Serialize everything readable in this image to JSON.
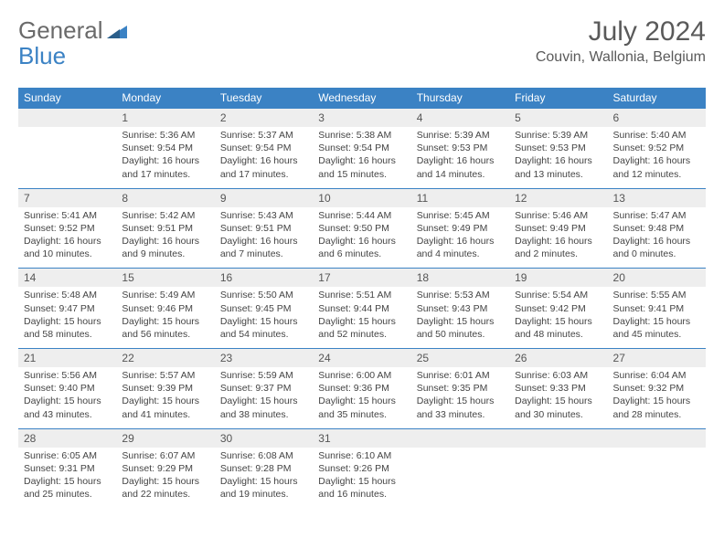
{
  "logo": {
    "part1": "General",
    "part2": "Blue"
  },
  "title": "July 2024",
  "location": "Couvin, Wallonia, Belgium",
  "colors": {
    "header_bg": "#3b82c4",
    "header_text": "#ffffff",
    "daynum_bg": "#eeeeee",
    "border": "#3b82c4",
    "text": "#444444",
    "title_text": "#5a5a5a"
  },
  "weekday_labels": [
    "Sunday",
    "Monday",
    "Tuesday",
    "Wednesday",
    "Thursday",
    "Friday",
    "Saturday"
  ],
  "first_weekday_index": 1,
  "days": [
    {
      "n": 1,
      "sunrise": "5:36 AM",
      "sunset": "9:54 PM",
      "daylight": "16 hours and 17 minutes."
    },
    {
      "n": 2,
      "sunrise": "5:37 AM",
      "sunset": "9:54 PM",
      "daylight": "16 hours and 17 minutes."
    },
    {
      "n": 3,
      "sunrise": "5:38 AM",
      "sunset": "9:54 PM",
      "daylight": "16 hours and 15 minutes."
    },
    {
      "n": 4,
      "sunrise": "5:39 AM",
      "sunset": "9:53 PM",
      "daylight": "16 hours and 14 minutes."
    },
    {
      "n": 5,
      "sunrise": "5:39 AM",
      "sunset": "9:53 PM",
      "daylight": "16 hours and 13 minutes."
    },
    {
      "n": 6,
      "sunrise": "5:40 AM",
      "sunset": "9:52 PM",
      "daylight": "16 hours and 12 minutes."
    },
    {
      "n": 7,
      "sunrise": "5:41 AM",
      "sunset": "9:52 PM",
      "daylight": "16 hours and 10 minutes."
    },
    {
      "n": 8,
      "sunrise": "5:42 AM",
      "sunset": "9:51 PM",
      "daylight": "16 hours and 9 minutes."
    },
    {
      "n": 9,
      "sunrise": "5:43 AM",
      "sunset": "9:51 PM",
      "daylight": "16 hours and 7 minutes."
    },
    {
      "n": 10,
      "sunrise": "5:44 AM",
      "sunset": "9:50 PM",
      "daylight": "16 hours and 6 minutes."
    },
    {
      "n": 11,
      "sunrise": "5:45 AM",
      "sunset": "9:49 PM",
      "daylight": "16 hours and 4 minutes."
    },
    {
      "n": 12,
      "sunrise": "5:46 AM",
      "sunset": "9:49 PM",
      "daylight": "16 hours and 2 minutes."
    },
    {
      "n": 13,
      "sunrise": "5:47 AM",
      "sunset": "9:48 PM",
      "daylight": "16 hours and 0 minutes."
    },
    {
      "n": 14,
      "sunrise": "5:48 AM",
      "sunset": "9:47 PM",
      "daylight": "15 hours and 58 minutes."
    },
    {
      "n": 15,
      "sunrise": "5:49 AM",
      "sunset": "9:46 PM",
      "daylight": "15 hours and 56 minutes."
    },
    {
      "n": 16,
      "sunrise": "5:50 AM",
      "sunset": "9:45 PM",
      "daylight": "15 hours and 54 minutes."
    },
    {
      "n": 17,
      "sunrise": "5:51 AM",
      "sunset": "9:44 PM",
      "daylight": "15 hours and 52 minutes."
    },
    {
      "n": 18,
      "sunrise": "5:53 AM",
      "sunset": "9:43 PM",
      "daylight": "15 hours and 50 minutes."
    },
    {
      "n": 19,
      "sunrise": "5:54 AM",
      "sunset": "9:42 PM",
      "daylight": "15 hours and 48 minutes."
    },
    {
      "n": 20,
      "sunrise": "5:55 AM",
      "sunset": "9:41 PM",
      "daylight": "15 hours and 45 minutes."
    },
    {
      "n": 21,
      "sunrise": "5:56 AM",
      "sunset": "9:40 PM",
      "daylight": "15 hours and 43 minutes."
    },
    {
      "n": 22,
      "sunrise": "5:57 AM",
      "sunset": "9:39 PM",
      "daylight": "15 hours and 41 minutes."
    },
    {
      "n": 23,
      "sunrise": "5:59 AM",
      "sunset": "9:37 PM",
      "daylight": "15 hours and 38 minutes."
    },
    {
      "n": 24,
      "sunrise": "6:00 AM",
      "sunset": "9:36 PM",
      "daylight": "15 hours and 35 minutes."
    },
    {
      "n": 25,
      "sunrise": "6:01 AM",
      "sunset": "9:35 PM",
      "daylight": "15 hours and 33 minutes."
    },
    {
      "n": 26,
      "sunrise": "6:03 AM",
      "sunset": "9:33 PM",
      "daylight": "15 hours and 30 minutes."
    },
    {
      "n": 27,
      "sunrise": "6:04 AM",
      "sunset": "9:32 PM",
      "daylight": "15 hours and 28 minutes."
    },
    {
      "n": 28,
      "sunrise": "6:05 AM",
      "sunset": "9:31 PM",
      "daylight": "15 hours and 25 minutes."
    },
    {
      "n": 29,
      "sunrise": "6:07 AM",
      "sunset": "9:29 PM",
      "daylight": "15 hours and 22 minutes."
    },
    {
      "n": 30,
      "sunrise": "6:08 AM",
      "sunset": "9:28 PM",
      "daylight": "15 hours and 19 minutes."
    },
    {
      "n": 31,
      "sunrise": "6:10 AM",
      "sunset": "9:26 PM",
      "daylight": "15 hours and 16 minutes."
    }
  ]
}
